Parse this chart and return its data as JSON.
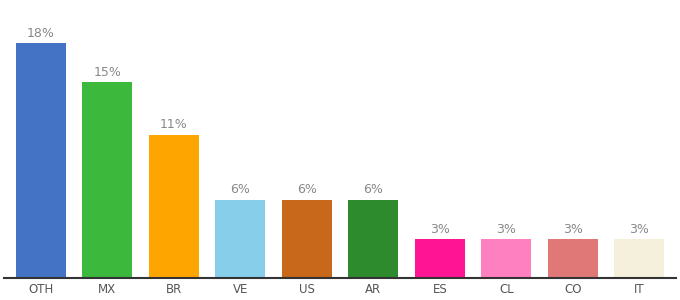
{
  "categories": [
    "OTH",
    "MX",
    "BR",
    "VE",
    "US",
    "AR",
    "ES",
    "CL",
    "CO",
    "IT"
  ],
  "values": [
    18,
    15,
    11,
    6,
    6,
    6,
    3,
    3,
    3,
    3
  ],
  "bar_colors": [
    "#4472C4",
    "#3CB83C",
    "#FFA500",
    "#87CEEB",
    "#C8681A",
    "#2D8A2D",
    "#FF1493",
    "#FF80C0",
    "#E07878",
    "#F5F0DC"
  ],
  "ylim": [
    0,
    21
  ],
  "background_color": "#ffffff",
  "label_fontsize": 9,
  "tick_fontsize": 8.5,
  "label_color": "#888888",
  "bar_width": 0.75
}
